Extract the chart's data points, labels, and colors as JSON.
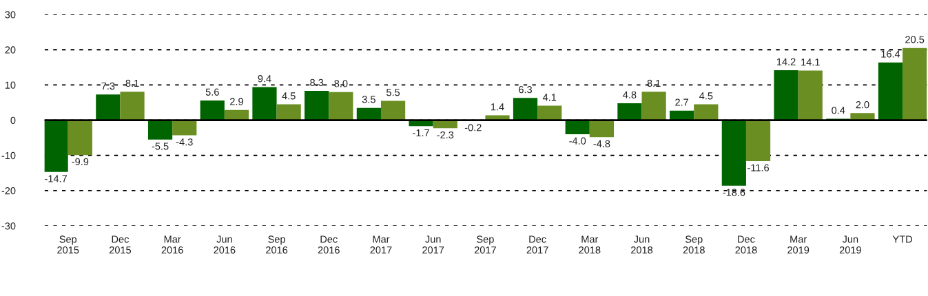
{
  "chart_data": {
    "type": "bar",
    "categories": [
      "Sep\n2015",
      "Dec\n2015",
      "Mar\n2016",
      "Jun\n2016",
      "Sep\n2016",
      "Dec\n2016",
      "Mar\n2017",
      "Jun\n2017",
      "Sep\n2017",
      "Dec\n2017",
      "Mar\n2018",
      "Jun\n2018",
      "Sep\n2018",
      "Dec\n2018",
      "Mar\n2019",
      "Jun\n2019",
      "YTD"
    ],
    "series": [
      {
        "color": "#006400",
        "values": [
          -14.7,
          7.3,
          -5.5,
          5.6,
          9.4,
          8.3,
          3.5,
          -1.7,
          -0.2,
          6.3,
          -4.0,
          4.8,
          2.7,
          -18.6,
          14.2,
          0.4,
          16.4
        ],
        "value_labels": [
          "-14.7",
          "7.3",
          "-5.5",
          "5.6",
          "9.4",
          "8.3",
          "3.5",
          "-1.7",
          "-0.2",
          "6.3",
          "-4.0",
          "4.8",
          "2.7",
          "-18.6",
          "14.2",
          "0.4",
          "16.4"
        ]
      },
      {
        "color": "#6b8e23",
        "values": [
          -9.9,
          8.1,
          -4.3,
          2.9,
          4.5,
          8.0,
          5.5,
          -2.3,
          1.4,
          4.1,
          -4.8,
          8.1,
          4.5,
          -11.6,
          14.1,
          2.0,
          20.5
        ],
        "value_labels": [
          "-9.9",
          "8.1",
          "-4.3",
          "2.9",
          "4.5",
          "8.0",
          "5.5",
          "-2.3",
          "1.4",
          "4.1",
          "-4.8",
          "8.1",
          "4.5",
          "-11.6",
          "14.1",
          "2.0",
          "20.5"
        ]
      }
    ],
    "ylim": [
      -30,
      30
    ],
    "yticks": [
      -30,
      -20,
      -10,
      0,
      10,
      20,
      30
    ],
    "grid": "y"
  }
}
